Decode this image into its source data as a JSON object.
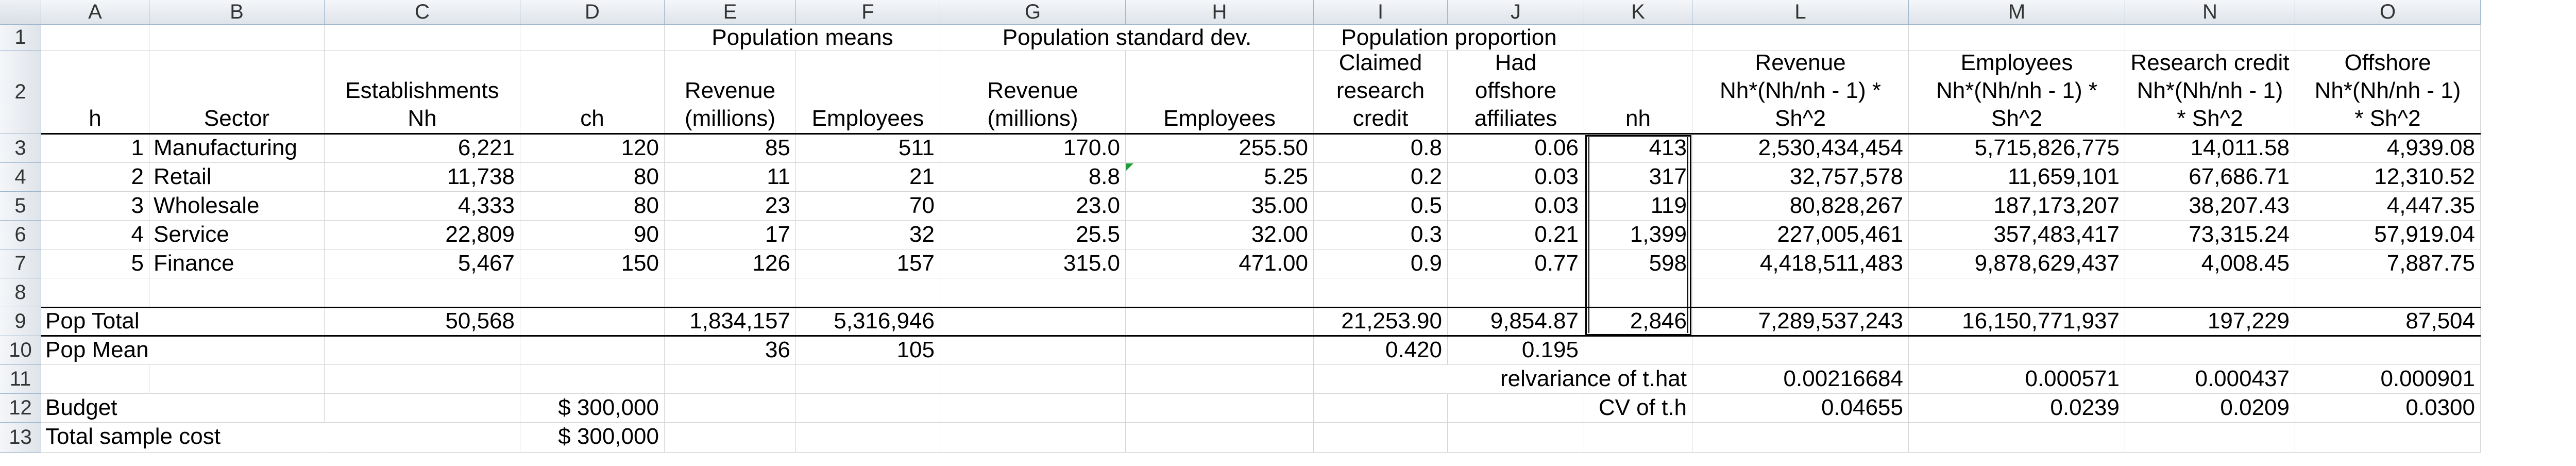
{
  "columns": [
    "A",
    "B",
    "C",
    "D",
    "E",
    "F",
    "G",
    "H",
    "I",
    "J",
    "K",
    "L",
    "M",
    "N",
    "O"
  ],
  "rows": [
    "1",
    "2",
    "3",
    "4",
    "5",
    "6",
    "7",
    "8",
    "9",
    "10",
    "11",
    "12",
    "13"
  ],
  "row1": {
    "population_means": "Population means",
    "population_sd": "Population standard dev.",
    "population_proportion": "Population proportion"
  },
  "header": {
    "A": [
      "h"
    ],
    "B": [
      "Sector"
    ],
    "C": [
      "Establishments",
      "Nh"
    ],
    "D": [
      "ch"
    ],
    "E": [
      "Revenue",
      "(millions)"
    ],
    "F": [
      "Employees"
    ],
    "G": [
      "Revenue",
      "(millions)"
    ],
    "H": [
      "Employees"
    ],
    "I": [
      "Claimed",
      "research",
      "credit"
    ],
    "J": [
      "Had",
      "offshore",
      "affiliates"
    ],
    "K": [
      "nh"
    ],
    "L": [
      "Revenue",
      "Nh*(Nh/nh - 1) *",
      "Sh^2"
    ],
    "M": [
      "Employees",
      "Nh*(Nh/nh - 1) *",
      "Sh^2"
    ],
    "N": [
      "Research credit",
      "Nh*(Nh/nh - 1)",
      "* Sh^2"
    ],
    "O": [
      "Offshore",
      "Nh*(Nh/nh - 1)",
      "* Sh^2"
    ]
  },
  "data_rows": [
    {
      "h": "1",
      "sector": "Manufacturing",
      "Nh": "6,221",
      "ch": "120",
      "rev_mean": "85",
      "emp_mean": "511",
      "rev_sd": "170.0",
      "emp_sd": "255.50",
      "claimed": "0.8",
      "offshore": "0.06",
      "nh": "413",
      "L": "2,530,434,454",
      "M": "5,715,826,775",
      "N": "14,011.58",
      "O": "4,939.08"
    },
    {
      "h": "2",
      "sector": "Retail",
      "Nh": "11,738",
      "ch": "80",
      "rev_mean": "11",
      "emp_mean": "21",
      "rev_sd": "8.8",
      "emp_sd": "5.25",
      "claimed": "0.2",
      "offshore": "0.03",
      "nh": "317",
      "L": "32,757,578",
      "M": "11,659,101",
      "N": "67,686.71",
      "O": "12,310.52"
    },
    {
      "h": "3",
      "sector": "Wholesale",
      "Nh": "4,333",
      "ch": "80",
      "rev_mean": "23",
      "emp_mean": "70",
      "rev_sd": "23.0",
      "emp_sd": "35.00",
      "claimed": "0.5",
      "offshore": "0.03",
      "nh": "119",
      "L": "80,828,267",
      "M": "187,173,207",
      "N": "38,207.43",
      "O": "4,447.35"
    },
    {
      "h": "4",
      "sector": "Service",
      "Nh": "22,809",
      "ch": "90",
      "rev_mean": "17",
      "emp_mean": "32",
      "rev_sd": "25.5",
      "emp_sd": "32.00",
      "claimed": "0.3",
      "offshore": "0.21",
      "nh": "1,399",
      "L": "227,005,461",
      "M": "357,483,417",
      "N": "73,315.24",
      "O": "57,919.04"
    },
    {
      "h": "5",
      "sector": "Finance",
      "Nh": "5,467",
      "ch": "150",
      "rev_mean": "126",
      "emp_mean": "157",
      "rev_sd": "315.0",
      "emp_sd": "471.00",
      "claimed": "0.9",
      "offshore": "0.77",
      "nh": "598",
      "L": "4,418,511,483",
      "M": "9,878,629,437",
      "N": "4,008.45",
      "O": "7,887.75"
    }
  ],
  "pop_total": {
    "label": "Pop Total",
    "Nh": "50,568",
    "rev": "1,834,157",
    "emp": "5,316,946",
    "claimed": "21,253.90",
    "offshore": "9,854.87",
    "nh": "2,846",
    "L": "7,289,537,243",
    "M": "16,150,771,937",
    "N": "197,229",
    "O": "87,504"
  },
  "pop_mean": {
    "label": "Pop Mean",
    "rev": "36",
    "emp": "105",
    "claimed": "0.420",
    "offshore": "0.195"
  },
  "relvar": {
    "label": "relvariance of t.hat",
    "L": "0.00216684",
    "M": "0.000571",
    "N": "0.000437",
    "O": "0.000901"
  },
  "cv": {
    "label": "CV of t.h",
    "L": "0.04655",
    "M": "0.0239",
    "N": "0.0209",
    "O": "0.0300"
  },
  "budget": {
    "label": "Budget",
    "value": "$ 300,000"
  },
  "total_cost": {
    "label": "Total sample cost",
    "value": "$ 300,000"
  }
}
